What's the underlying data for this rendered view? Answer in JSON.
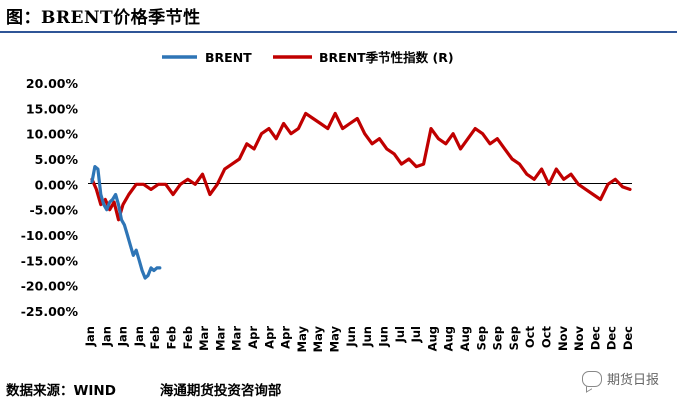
{
  "header": {
    "title": "图：BRENT价格季节性"
  },
  "footer": {
    "source": "数据来源：WIND",
    "org": "海通期货投资咨询部"
  },
  "watermark": {
    "text": "期货日报",
    "icon": "wechat-icon"
  },
  "colors": {
    "brent": "#2e75b6",
    "seasonal": "#c00000",
    "rule": "#2f5597"
  },
  "chart_data": {
    "type": "line",
    "legend": {
      "position": "top-center",
      "items": [
        "BRENT",
        "BRENT季节性指数 (R)"
      ]
    },
    "ylim": [
      -25,
      20
    ],
    "yticks": [
      20,
      15,
      10,
      5,
      0,
      -5,
      -10,
      -15,
      -20,
      -25
    ],
    "ytick_labels": [
      "20.00%",
      "15.00%",
      "10.00%",
      "5.00%",
      "0.00%",
      "-5.00%",
      "-10.00%",
      "-15.00%",
      "-20.00%",
      "-25.00%"
    ],
    "x_tick_labels": [
      "Jan",
      "Jan",
      "Jan",
      "Jan",
      "Feb",
      "Feb",
      "Feb",
      "Mar",
      "Mar",
      "Mar",
      "Apr",
      "Apr",
      "Apr",
      "May",
      "May",
      "May",
      "Jun",
      "Jun",
      "Jun",
      "Jul",
      "Jul",
      "Aug",
      "Aug",
      "Aug",
      "Sep",
      "Sep",
      "Sep",
      "Oct",
      "Oct",
      "Nov",
      "Nov",
      "Dec",
      "Dec",
      "Dec"
    ],
    "x_range": [
      0,
      365
    ],
    "series": [
      {
        "name": "BRENT",
        "color": "#2e75b6",
        "x": [
          0,
          2,
          4,
          6,
          8,
          10,
          12,
          14,
          16,
          18,
          20,
          22,
          24,
          26,
          28,
          30,
          32,
          34,
          36,
          38,
          40,
          42,
          44,
          46
        ],
        "y": [
          0.5,
          3.5,
          3,
          -2,
          -4,
          -5,
          -3.5,
          -3,
          -2,
          -4,
          -7,
          -8,
          -10,
          -12,
          -14,
          -13,
          -15,
          -17,
          -18.5,
          -18,
          -16.5,
          -17,
          -16.5,
          -16.5
        ]
      },
      {
        "name": "BRENT季节性指数 (R)",
        "color": "#c00000",
        "x": [
          0,
          3,
          6,
          9,
          12,
          15,
          18,
          21,
          25,
          30,
          35,
          40,
          45,
          50,
          55,
          60,
          65,
          70,
          75,
          80,
          85,
          90,
          95,
          100,
          105,
          110,
          115,
          120,
          125,
          130,
          135,
          140,
          145,
          150,
          155,
          160,
          165,
          170,
          175,
          180,
          185,
          190,
          195,
          200,
          205,
          210,
          215,
          220,
          225,
          230,
          235,
          240,
          245,
          250,
          255,
          260,
          265,
          270,
          275,
          280,
          285,
          290,
          295,
          300,
          305,
          310,
          315,
          320,
          325,
          330,
          335,
          340,
          345,
          350,
          355,
          360,
          365
        ],
        "y": [
          1,
          -1,
          -4,
          -3,
          -5,
          -3.5,
          -7,
          -4,
          -2,
          0,
          0,
          -1,
          0,
          0,
          -2,
          0,
          1,
          0,
          2,
          -2,
          0,
          3,
          4,
          5,
          8,
          7,
          10,
          11,
          9,
          12,
          10,
          11,
          14,
          13,
          12,
          11,
          14,
          11,
          12,
          13,
          10,
          8,
          9,
          7,
          6,
          4,
          5,
          3.5,
          4,
          11,
          9,
          8,
          10,
          7,
          9,
          11,
          10,
          8,
          9,
          7,
          5,
          4,
          2,
          1,
          3,
          0,
          3,
          1,
          2,
          0,
          -1,
          -2,
          -3,
          0,
          1,
          -0.5,
          -1
        ]
      }
    ]
  }
}
